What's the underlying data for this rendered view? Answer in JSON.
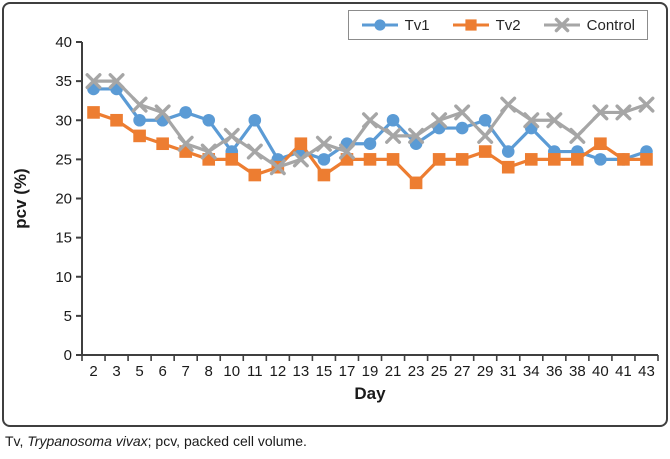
{
  "figure": {
    "footnote": {
      "prefix": "Tv, ",
      "italic": "Trypanosoma vivax",
      "suffix": "; pcv, packed cell volume."
    }
  },
  "chart_data": {
    "type": "line",
    "title": "",
    "xlabel": "Day",
    "ylabel": "pcv (%)",
    "ylim": [
      0,
      40
    ],
    "yticks": [
      0,
      5,
      10,
      15,
      20,
      25,
      30,
      35,
      40
    ],
    "grid": false,
    "legend_position": "top-right",
    "axis_color": "#3f3f3f",
    "text_color": "#1a1a1a",
    "categories": [
      "2",
      "3",
      "5",
      "6",
      "7",
      "8",
      "10",
      "11",
      "12",
      "13",
      "15",
      "17",
      "19",
      "21",
      "23",
      "25",
      "27",
      "29",
      "31",
      "34",
      "36",
      "38",
      "40",
      "41",
      "43"
    ],
    "series": [
      {
        "name": "Tv1",
        "marker": "circle",
        "color": "#5B9BD5",
        "values": [
          34,
          34,
          30,
          30,
          31,
          30,
          26,
          30,
          25,
          26,
          25,
          27,
          27,
          30,
          27,
          29,
          29,
          30,
          26,
          29,
          26,
          26,
          25,
          25,
          26
        ]
      },
      {
        "name": "Tv2",
        "marker": "square",
        "color": "#ED7D31",
        "values": [
          31,
          30,
          28,
          27,
          26,
          25,
          25,
          23,
          24,
          27,
          23,
          25,
          25,
          25,
          22,
          25,
          25,
          26,
          24,
          25,
          25,
          25,
          27,
          25,
          25
        ]
      },
      {
        "name": "Control",
        "marker": "x",
        "color": "#A6A6A6",
        "values": [
          35,
          35,
          32,
          31,
          27,
          26,
          28,
          26,
          24,
          25,
          27,
          26,
          30,
          28,
          28,
          30,
          31,
          28,
          32,
          30,
          30,
          28,
          31,
          31,
          32
        ]
      }
    ]
  }
}
